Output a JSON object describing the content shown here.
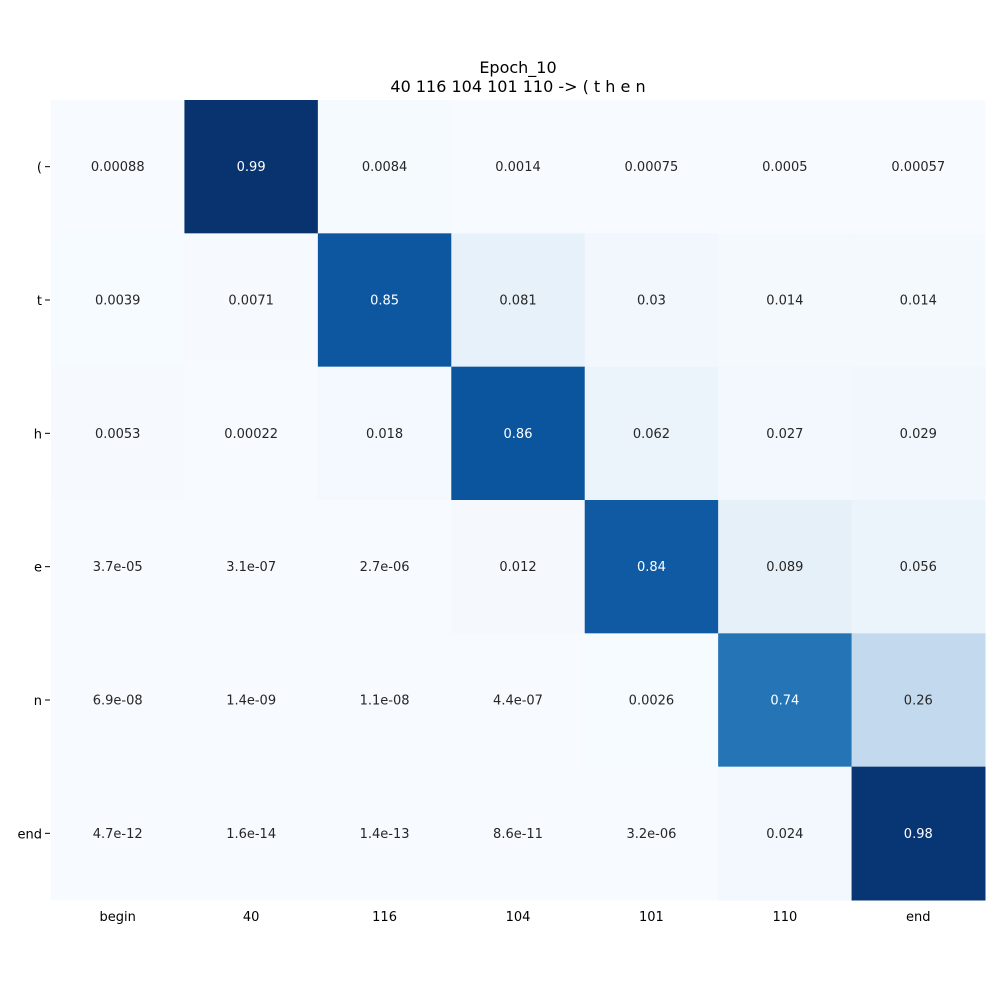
{
  "chart_data": {
    "type": "heatmap",
    "title": "Epoch_10",
    "subtitle": "40 116 104 101 110 -> ( t h e n",
    "x_labels": [
      "begin",
      "40",
      "116",
      "104",
      "101",
      "110",
      "end"
    ],
    "y_labels": [
      "(",
      "t",
      "h",
      "e",
      "n",
      "end"
    ],
    "colormap": "Blues",
    "value_range": [
      0,
      1
    ],
    "values": [
      [
        0.00088,
        0.99,
        0.0084,
        0.0014,
        0.00075,
        0.0005,
        0.00057
      ],
      [
        0.0039,
        0.0071,
        0.85,
        0.081,
        0.03,
        0.014,
        0.014
      ],
      [
        0.0053,
        0.00022,
        0.018,
        0.86,
        0.062,
        0.027,
        0.029
      ],
      [
        3.7e-05,
        3.1e-07,
        2.7e-06,
        0.012,
        0.84,
        0.089,
        0.056
      ],
      [
        6.9e-08,
        1.4e-09,
        1.1e-08,
        4.4e-07,
        0.0026,
        0.74,
        0.26
      ],
      [
        4.7e-12,
        1.6e-14,
        1.4e-13,
        8.6e-11,
        3.2e-06,
        0.024,
        0.98
      ]
    ],
    "value_labels": [
      [
        "0.00088",
        "0.99",
        "0.0084",
        "0.0014",
        "0.00075",
        "0.0005",
        "0.00057"
      ],
      [
        "0.0039",
        "0.0071",
        "0.85",
        "0.081",
        "0.03",
        "0.014",
        "0.014"
      ],
      [
        "0.0053",
        "0.00022",
        "0.018",
        "0.86",
        "0.062",
        "0.027",
        "0.029"
      ],
      [
        "3.7e-05",
        "3.1e-07",
        "2.7e-06",
        "0.012",
        "0.84",
        "0.089",
        "0.056"
      ],
      [
        "6.9e-08",
        "1.4e-09",
        "1.1e-08",
        "4.4e-07",
        "0.0026",
        "0.74",
        "0.26"
      ],
      [
        "4.7e-12",
        "1.6e-14",
        "1.4e-13",
        "8.6e-11",
        "3.2e-06",
        "0.024",
        "0.98"
      ]
    ]
  }
}
